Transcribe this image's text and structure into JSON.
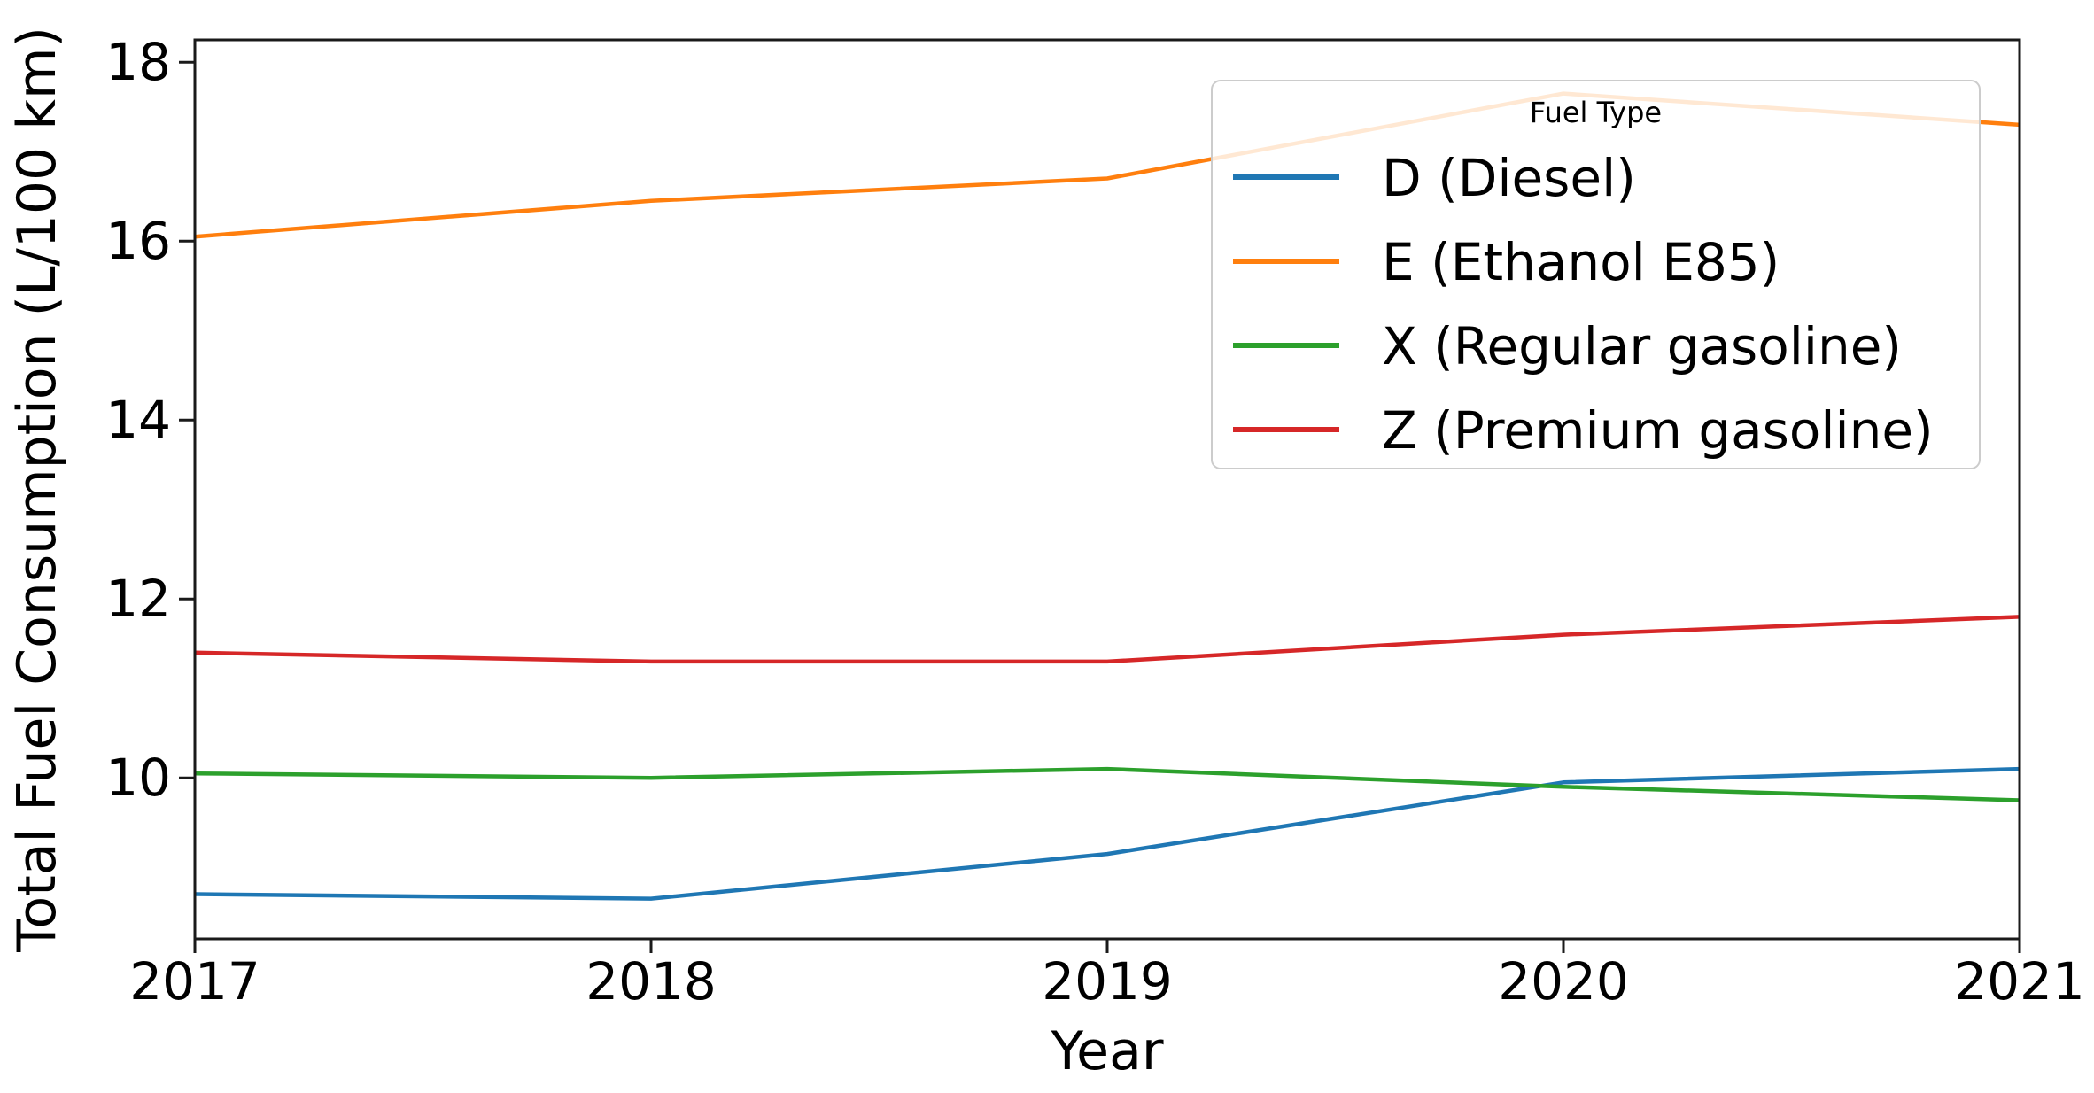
{
  "figure": {
    "background": "#ffffff",
    "text_color": "#000000",
    "spine_color": "#1a1a1a"
  },
  "chart_data": {
    "type": "line",
    "title": "",
    "xlabel": "Year",
    "ylabel": "Total Fuel Consumption (L/100 km)",
    "xlim": [
      2017,
      2021
    ],
    "ylim": [
      8.2,
      18.25
    ],
    "grid": false,
    "x": [
      2017,
      2018,
      2019,
      2020,
      2021
    ],
    "x_ticks": [
      2017,
      2018,
      2019,
      2020,
      2021
    ],
    "x_tick_labels": [
      "2017",
      "2018",
      "2019",
      "2020",
      "2021"
    ],
    "y_ticks": [
      10,
      12,
      14,
      16,
      18
    ],
    "y_tick_labels": [
      "10",
      "12",
      "14",
      "16",
      "18"
    ],
    "legend": {
      "title": "Fuel Type",
      "position": "upper right",
      "frame_fill": "#ffffff",
      "frame_opacity": 0.82,
      "frame_border": "#cccccc"
    },
    "series": [
      {
        "key": "D",
        "name": "D (Diesel)",
        "color": "#1f77b4",
        "values": [
          8.7,
          8.65,
          9.15,
          9.95,
          10.1
        ]
      },
      {
        "key": "E",
        "name": "E (Ethanol E85)",
        "color": "#ff7f0e",
        "values": [
          16.05,
          16.45,
          16.7,
          17.65,
          17.3
        ]
      },
      {
        "key": "X",
        "name": "X (Regular gasoline)",
        "color": "#2ca02c",
        "values": [
          10.05,
          10.0,
          10.1,
          9.9,
          9.75
        ]
      },
      {
        "key": "Z",
        "name": "Z (Premium gasoline)",
        "color": "#d62728",
        "values": [
          11.4,
          11.3,
          11.3,
          11.6,
          11.8
        ]
      }
    ]
  }
}
